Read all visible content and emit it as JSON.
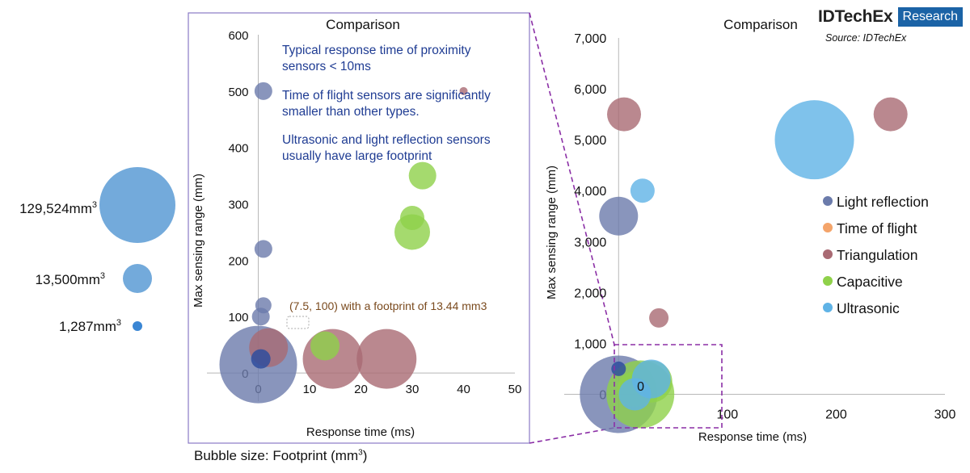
{
  "branding": {
    "name": "IDTechEx",
    "tag": "Research",
    "source": "Source: IDTechEx"
  },
  "footnote": {
    "text": "Bubble size: Footprint (mm",
    "sup": "3",
    "tail": ")"
  },
  "bubble_size_legend": [
    {
      "label": "129,524mm",
      "sup": "3",
      "value": 129524
    },
    {
      "label": "13,500mm",
      "sup": "3",
      "value": 13500
    },
    {
      "label": "1,287mm",
      "sup": "3",
      "value": 1287
    }
  ],
  "colors": {
    "light_reflection": "#6b7bab",
    "time_of_flight": "#f4a46a",
    "triangulation": "#a96a73",
    "capacitive": "#8fd14a",
    "ultrasonic": "#5fb3e6",
    "dark_blue": "#2f4d9e",
    "box": "#8a7ac6",
    "zoom": "#8b2fa6",
    "note": "#1f3c93",
    "annotation": "#7a4a1e"
  },
  "chart_data": [
    {
      "type": "scatter",
      "title": "Comparison",
      "xlabel": "Response time (ms)",
      "ylabel": "Max sensing range (mm)",
      "xlim": [
        -10,
        50
      ],
      "ylim": [
        -50,
        600
      ],
      "x_ticks": [
        "0",
        "10",
        "20",
        "30",
        "40",
        "50"
      ],
      "y_ticks": [
        "0",
        "100",
        "200",
        "300",
        "400",
        "500",
        "600"
      ],
      "notes": [
        "Typical response time of proximity",
        "sensors < 10ms",
        "Time of flight sensors are significantly",
        "smaller than other types.",
        "Ultrasonic and light reflection sensors",
        "usually have large footprint"
      ],
      "annotation": "(7.5, 100) with a footprint of 13.44 mm3",
      "series": [
        {
          "name": "Light reflection",
          "color_key": "light_reflection",
          "points": [
            {
              "x": 0,
              "y": 15,
              "r": 48
            },
            {
              "x": 1,
              "y": 500,
              "r": 11
            },
            {
              "x": 1,
              "y": 220,
              "r": 11
            },
            {
              "x": 1,
              "y": 120,
              "r": 10
            },
            {
              "x": 0.5,
              "y": 100,
              "r": 11
            }
          ]
        },
        {
          "name": "Time of flight",
          "color_key": "time_of_flight",
          "points": [
            {
              "x": 7.5,
              "y": 100,
              "r": 0
            }
          ]
        },
        {
          "name": "Triangulation",
          "color_key": "triangulation",
          "points": [
            {
              "x": 14.5,
              "y": 25,
              "r": 37
            },
            {
              "x": 25,
              "y": 25,
              "r": 37
            },
            {
              "x": 2,
              "y": 45,
              "r": 24
            },
            {
              "x": 40,
              "y": 500,
              "r": 5
            }
          ]
        },
        {
          "name": "Capacitive",
          "color_key": "capacitive",
          "points": [
            {
              "x": 30,
              "y": 250,
              "r": 22
            },
            {
              "x": 30,
              "y": 275,
              "r": 15
            },
            {
              "x": 32,
              "y": 350,
              "r": 17
            },
            {
              "x": 13,
              "y": 48,
              "r": 18
            }
          ]
        },
        {
          "name": "Ultrasonic",
          "color_key": "ultrasonic",
          "points": []
        },
        {
          "name": "",
          "color_key": "dark_blue",
          "points": [
            {
              "x": 0.5,
              "y": 25,
              "r": 12
            }
          ]
        }
      ]
    },
    {
      "type": "scatter",
      "title": "Comparison",
      "xlabel": "Response time (ms)",
      "ylabel": "Max sensing range (mm)",
      "xlim": [
        -50,
        300
      ],
      "ylim": [
        -500,
        7000
      ],
      "x_ticks": [
        "0",
        "100",
        "200",
        "300"
      ],
      "y_ticks": [
        "0",
        "1,000",
        "2,000",
        "3,000",
        "4,000",
        "5,000",
        "6,000",
        "7,000"
      ],
      "legend": [
        "Light reflection",
        "Time of flight",
        "Triangulation",
        "Capacitive",
        "Ultrasonic"
      ],
      "legend_position": "right",
      "series": [
        {
          "name": "Light reflection",
          "color_key": "light_reflection",
          "points": [
            {
              "x": 0,
              "y": 3500,
              "r": 24
            },
            {
              "x": 0,
              "y": 0,
              "r": 48
            }
          ]
        },
        {
          "name": "Time of flight",
          "color_key": "time_of_flight",
          "points": [
            {
              "x": 7.5,
              "y": 100,
              "r": 0
            }
          ]
        },
        {
          "name": "Triangulation",
          "color_key": "triangulation",
          "points": [
            {
              "x": 5,
              "y": 5500,
              "r": 21
            },
            {
              "x": 250,
              "y": 5500,
              "r": 21
            },
            {
              "x": 37,
              "y": 1500,
              "r": 12
            }
          ]
        },
        {
          "name": "Capacitive",
          "color_key": "capacitive",
          "points": [
            {
              "x": 20,
              "y": 0,
              "r": 42
            },
            {
              "x": 30,
              "y": 250,
              "r": 26
            },
            {
              "x": 15,
              "y": 100,
              "r": 22
            }
          ]
        },
        {
          "name": "Ultrasonic",
          "color_key": "ultrasonic",
          "points": [
            {
              "x": 180,
              "y": 5000,
              "r": 49
            },
            {
              "x": 22,
              "y": 4000,
              "r": 15
            },
            {
              "x": 30,
              "y": 300,
              "r": 24
            },
            {
              "x": 15,
              "y": 0,
              "r": 20
            }
          ]
        },
        {
          "name": "",
          "color_key": "dark_blue",
          "points": [
            {
              "x": 0,
              "y": 500,
              "r": 9
            }
          ]
        }
      ]
    }
  ]
}
